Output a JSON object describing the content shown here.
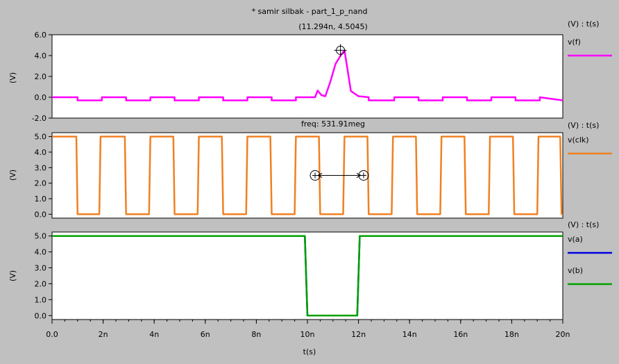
{
  "window": {
    "title": "* samir silbak - part_1_p_nand"
  },
  "chart_data": [
    {
      "type": "line",
      "ylabel": "(V)",
      "header": "(V) : t(s)",
      "annotation": "(11.294n, 4.5045)",
      "cursor": {
        "x": 11.294,
        "y": 4.5045
      },
      "ylim": [
        -2.0,
        6.0
      ],
      "yticks": [
        "-2.0",
        "0.0",
        "2.0",
        "4.0",
        "6.0"
      ],
      "xlim": [
        0,
        20
      ],
      "series": [
        {
          "name": "v(f)",
          "color": "#ff00ff",
          "x": [
            0,
            1.0,
            1.0,
            1.95,
            1.95,
            2.9,
            2.9,
            3.85,
            3.85,
            4.8,
            4.8,
            5.75,
            5.75,
            6.7,
            6.7,
            7.65,
            7.65,
            8.6,
            8.6,
            9.55,
            9.55,
            10.3,
            10.4,
            10.55,
            10.7,
            10.9,
            11.1,
            11.3,
            11.45,
            11.55,
            11.7,
            12.0,
            12.4,
            12.4,
            13.4,
            13.4,
            14.35,
            14.35,
            15.3,
            15.3,
            16.25,
            16.25,
            17.2,
            17.2,
            18.15,
            18.15,
            19.1,
            19.1,
            20
          ],
          "y": [
            0.0,
            0.0,
            -0.3,
            -0.3,
            0.0,
            0.0,
            -0.3,
            -0.3,
            0.0,
            0.0,
            -0.3,
            -0.3,
            0.0,
            0.0,
            -0.3,
            -0.3,
            0.0,
            0.0,
            -0.3,
            -0.3,
            0.0,
            0.0,
            0.65,
            0.2,
            0.1,
            1.5,
            3.2,
            4.0,
            4.5,
            3.0,
            0.6,
            0.1,
            0.0,
            -0.3,
            -0.3,
            0.0,
            0.0,
            -0.3,
            -0.3,
            0.0,
            0.0,
            -0.3,
            -0.3,
            0.0,
            0.0,
            -0.3,
            -0.3,
            0.0,
            -0.3
          ]
        }
      ]
    },
    {
      "type": "line",
      "ylabel": "(V)",
      "header": "(V) : t(s)",
      "annotation": "freq: 531.91meg",
      "measure": {
        "x1": 10.3,
        "x2": 12.2,
        "y": 2.5
      },
      "ylim": [
        -0.25,
        5.25
      ],
      "yticks": [
        "0.0",
        "1.0",
        "2.0",
        "3.0",
        "4.0",
        "5.0"
      ],
      "xlim": [
        0,
        20
      ],
      "series": [
        {
          "name": "v(clk)",
          "color": "#f08020",
          "x": [
            0,
            0.95,
            1.0,
            1.85,
            1.9,
            2.85,
            2.9,
            3.8,
            3.85,
            4.75,
            4.8,
            5.7,
            5.75,
            6.65,
            6.7,
            7.6,
            7.65,
            8.55,
            8.6,
            9.5,
            9.55,
            10.45,
            10.5,
            11.4,
            11.45,
            12.35,
            12.4,
            13.3,
            13.35,
            14.25,
            14.3,
            15.2,
            15.25,
            16.15,
            16.2,
            17.1,
            17.15,
            18.05,
            18.1,
            19.0,
            19.05,
            19.9,
            19.95,
            20
          ],
          "y": [
            5,
            5,
            0,
            0,
            5,
            5,
            0,
            0,
            5,
            5,
            0,
            0,
            5,
            5,
            0,
            0,
            5,
            5,
            0,
            0,
            5,
            5,
            0,
            0,
            5,
            5,
            0,
            0,
            5,
            5,
            0,
            0,
            5,
            5,
            0,
            0,
            5,
            5,
            0,
            0,
            5,
            5,
            0,
            0
          ]
        }
      ]
    },
    {
      "type": "line",
      "ylabel": "(V)",
      "header": "(V) : t(s)",
      "xlabel": "t(s)",
      "ylim": [
        -0.25,
        5.25
      ],
      "yticks": [
        "0.0",
        "1.0",
        "2.0",
        "3.0",
        "4.0",
        "5.0"
      ],
      "xlim": [
        0,
        20
      ],
      "xticks": [
        "0.0",
        "2n",
        "4n",
        "6n",
        "8n",
        "10n",
        "12n",
        "14n",
        "16n",
        "18n",
        "20n"
      ],
      "series": [
        {
          "name": "v(a)",
          "color": "#0000e0",
          "x": [
            0,
            9.9,
            10.0,
            11.95,
            12.05,
            20
          ],
          "y": [
            5,
            5,
            0,
            0,
            5,
            5
          ]
        },
        {
          "name": "v(b)",
          "color": "#00a000",
          "x": [
            0,
            9.9,
            10.0,
            11.95,
            12.05,
            20
          ],
          "y": [
            5,
            5,
            0,
            0,
            5,
            5
          ]
        }
      ]
    }
  ]
}
